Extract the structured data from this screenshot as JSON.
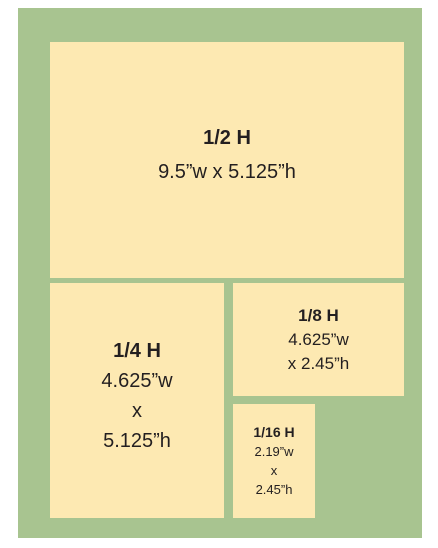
{
  "boxes": [
    {
      "title": "1/2 H",
      "lines": [
        "9.5”w x 5.125”h"
      ]
    },
    {
      "title": "1/4 H",
      "lines": [
        "4.625”w",
        "x",
        "5.125”h"
      ]
    },
    {
      "title": "1/8 H",
      "lines": [
        "4.625”w",
        "x 2.45”h"
      ]
    },
    {
      "title": "1/16 H",
      "lines": [
        "2.19”w",
        "x",
        "2.45”h"
      ]
    }
  ]
}
